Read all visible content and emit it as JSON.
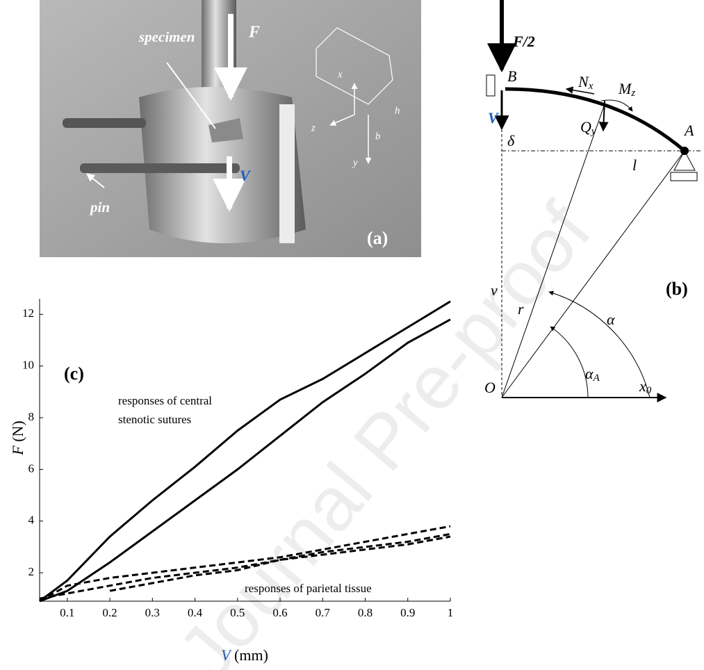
{
  "photo": {
    "force": "F",
    "specimen": "specimen",
    "pin": "pin",
    "displacement": "V",
    "axis_x": "x",
    "axis_z": "z",
    "axis_y": "y",
    "height": "h",
    "width": "b",
    "panel": "(a)"
  },
  "diagram": {
    "load": "F/2",
    "point_b": "B",
    "normal": {
      "main": "N",
      "sub": "x"
    },
    "moment": {
      "main": "M",
      "sub": "z"
    },
    "displacement": "V",
    "shear": {
      "main": "Q",
      "sub": "y"
    },
    "deflection": "δ",
    "point_a": "A",
    "length": "l",
    "vertical": "v",
    "radius": "r",
    "angle": "α",
    "angle_a": {
      "main": "α",
      "sub": "A"
    },
    "origin": "O",
    "horizontal": {
      "main": "x",
      "sub": "0"
    },
    "panel": "(b)"
  },
  "watermark": "Journal Pre-proof",
  "chart_data": {
    "type": "line",
    "panel": "(c)",
    "y_label": {
      "main": "F",
      "rest": " (N)"
    },
    "x_label": {
      "main": "V",
      "rest": " (mm)"
    },
    "annotations": [
      "responses of  central",
      "stenotic sutures",
      "responses of parietal  tissue"
    ],
    "x": [
      0.035,
      0.1,
      0.2,
      0.3,
      0.4,
      0.5,
      0.6,
      0.7,
      0.8,
      0.9,
      1
    ],
    "series": [
      {
        "color": "#000000",
        "dash": "solid",
        "values": [
          0.9,
          1.7,
          3.4,
          4.8,
          6.1,
          7.5,
          8.7,
          9.5,
          10.5,
          11.5,
          12.5
        ]
      },
      {
        "color": "#000000",
        "dash": "solid",
        "values": [
          0.9,
          1.3,
          2.4,
          3.6,
          4.8,
          6.0,
          7.3,
          8.6,
          9.7,
          10.9,
          11.8
        ]
      },
      {
        "color": "#000000",
        "dash": "dashed",
        "values": [
          0.9,
          1.5,
          1.8,
          2.0,
          2.2,
          2.4,
          2.6,
          2.9,
          3.2,
          3.5,
          3.8
        ]
      },
      {
        "color": "#000000",
        "dash": "dashed",
        "values": [
          1.0,
          1.2,
          1.5,
          1.8,
          2.0,
          2.2,
          2.5,
          2.8,
          3.0,
          3.2,
          3.5
        ]
      },
      {
        "color": "#000000",
        "dash": "dashed",
        "values": [
          null,
          null,
          1.3,
          1.6,
          1.9,
          2.1,
          2.5,
          2.7,
          2.9,
          3.1,
          3.4
        ]
      }
    ],
    "xlim": [
      0.035,
      1
    ],
    "ylim": [
      0.9,
      12.6
    ],
    "xticks": [
      0.1,
      0.2,
      0.3,
      0.4,
      0.5,
      0.6,
      0.7,
      0.8,
      0.9,
      1
    ],
    "yticks": [
      2,
      4,
      6,
      8,
      10,
      12
    ]
  }
}
